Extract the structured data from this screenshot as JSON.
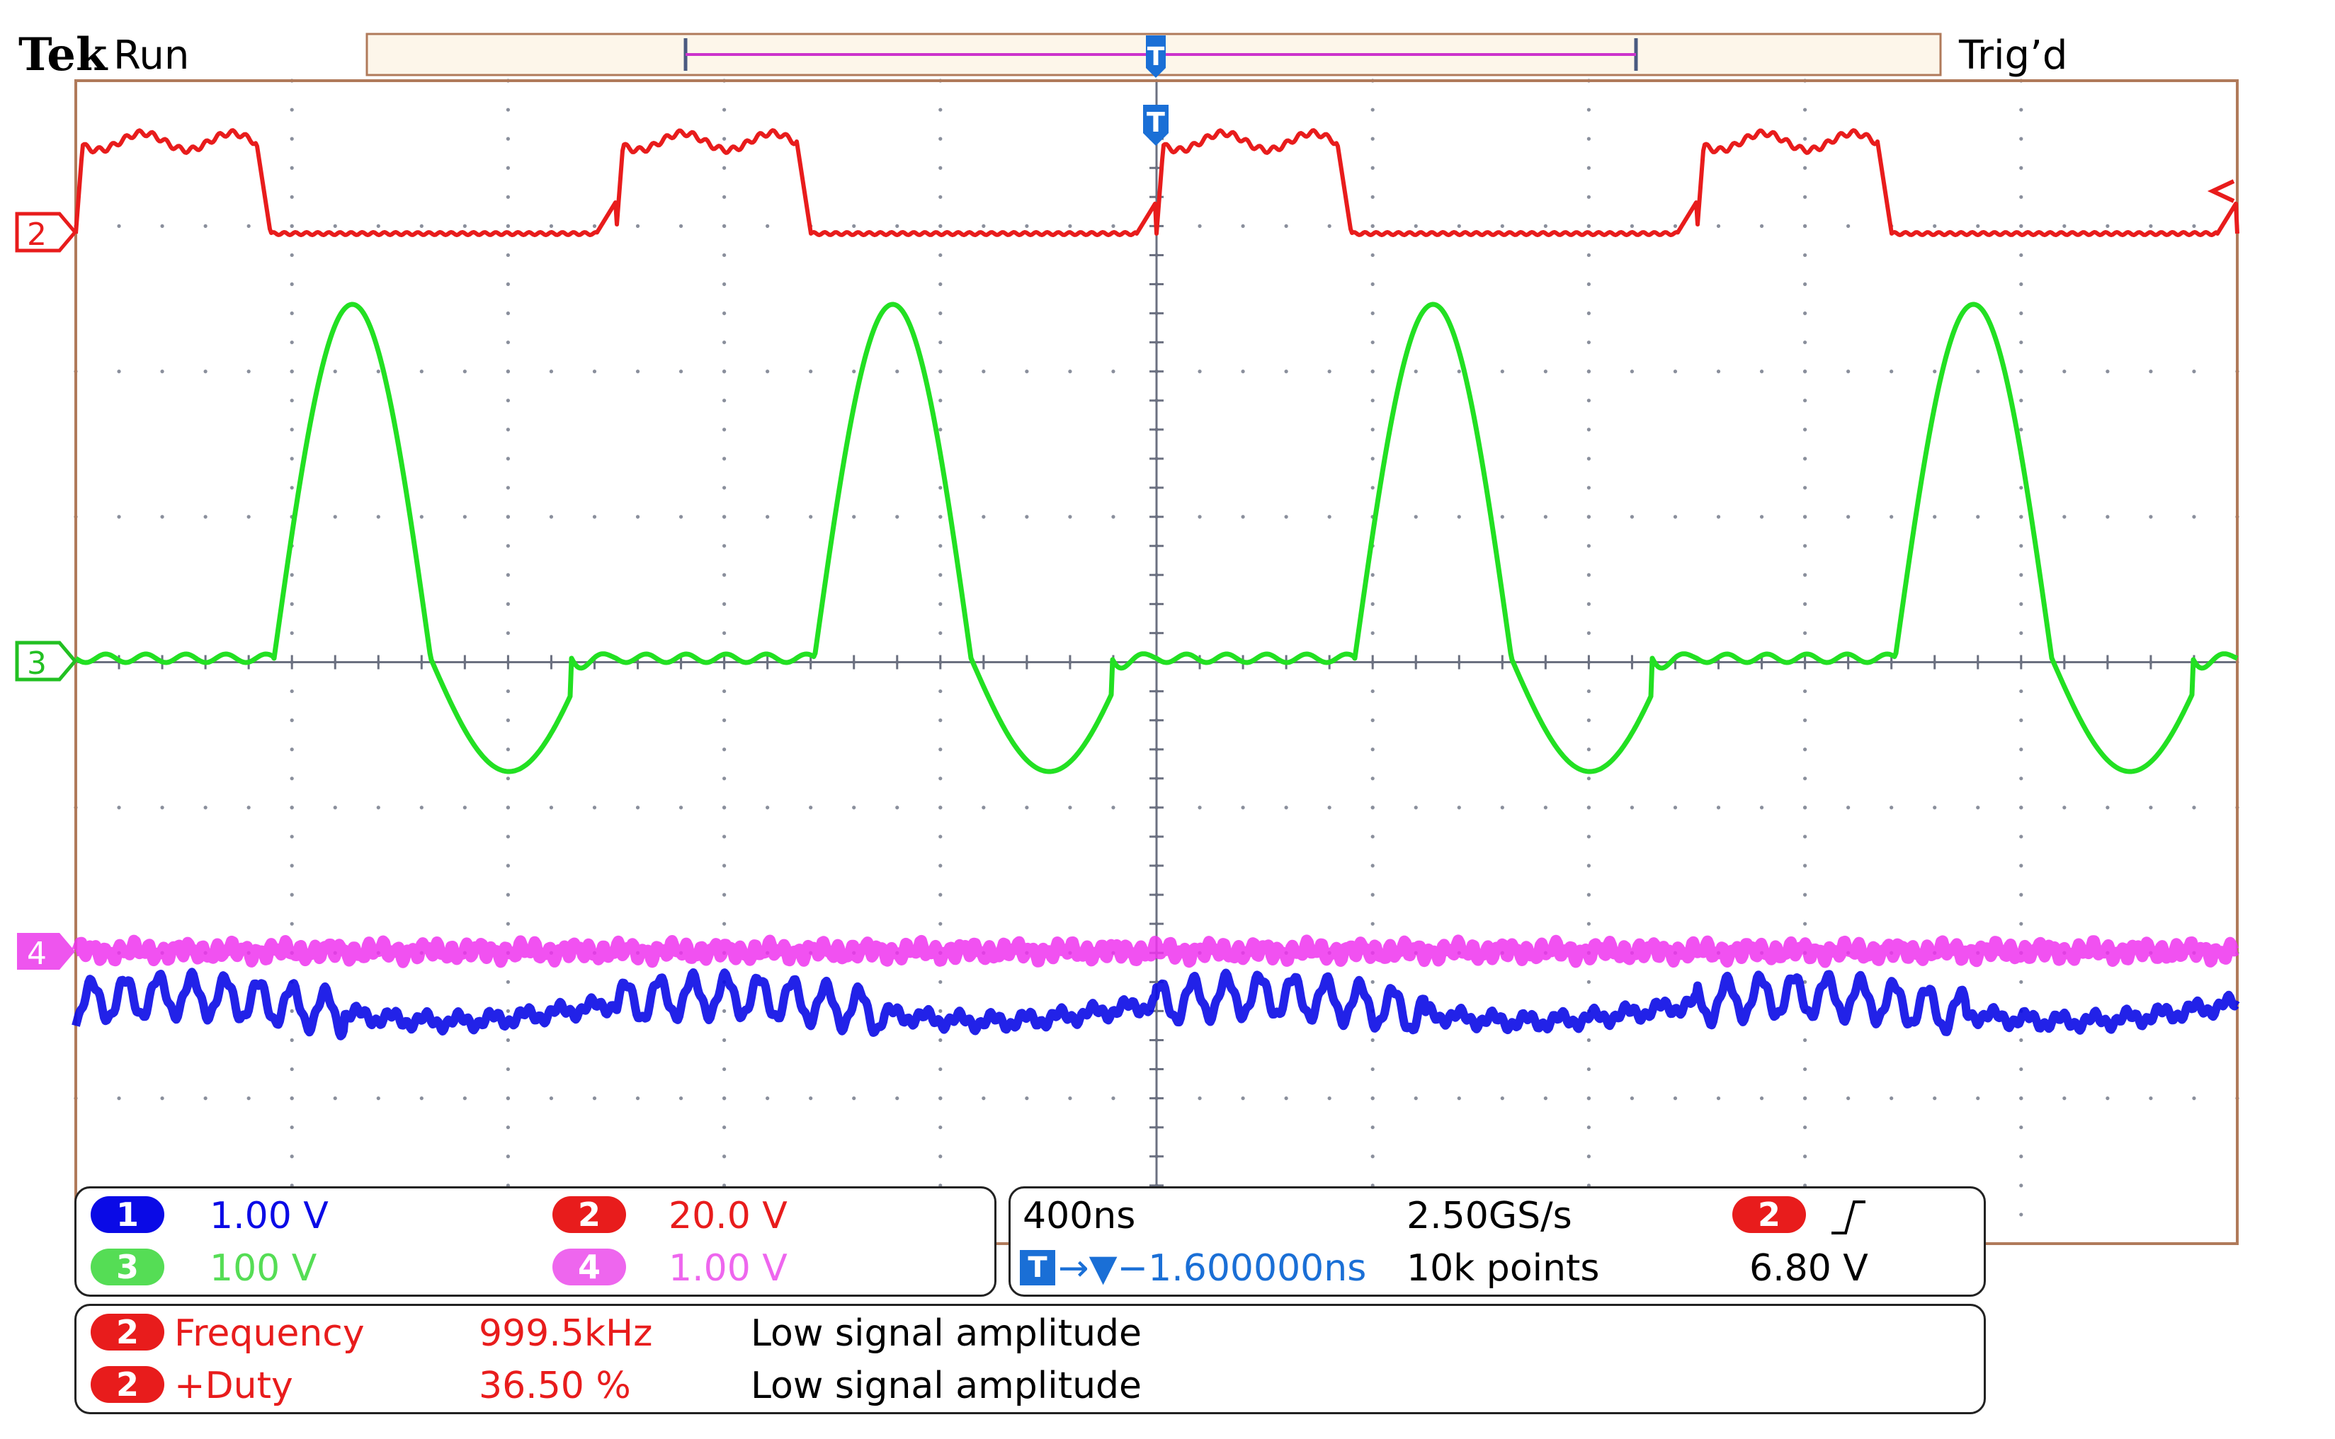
{
  "header": {
    "brand": "Tek",
    "run_state": "Run",
    "trigger_status": "Trig’d"
  },
  "markers": {
    "trigger_position": "T",
    "ch2": "2",
    "ch3": "3",
    "ch4": "4"
  },
  "colors": {
    "ch1": "#0a0ae6",
    "ch2": "#e81c1c",
    "ch3": "#22e022",
    "ch4": "#ee33ee",
    "grid": "#8a8f9c",
    "trigger_marker": "#1a6fd6",
    "record_bar": "#cc33cc"
  },
  "channels": [
    {
      "number": "1",
      "scale": "1.00 V",
      "color": "#0a0ae6"
    },
    {
      "number": "2",
      "scale": "20.0 V",
      "color": "#e81c1c"
    },
    {
      "number": "3",
      "scale": "100 V",
      "color": "#3ad33a"
    },
    {
      "number": "4",
      "scale": "1.00 V",
      "color": "#ee55ee"
    }
  ],
  "timebase": {
    "horizontal_scale": "400ns",
    "sample_rate": "2.50GS/s",
    "delay": "→▼−1.600000ns",
    "record_length": "10k points",
    "trigger_source": "2",
    "trigger_slope": "rising-edge-icon",
    "trigger_level": "6.80 V"
  },
  "measurements": [
    {
      "source": "2",
      "name": "Frequency",
      "value": "999.5kHz",
      "status": "Low signal amplitude"
    },
    {
      "source": "2",
      "name": "+Duty",
      "value": "36.50 %",
      "status": "Low signal amplitude"
    }
  ]
}
